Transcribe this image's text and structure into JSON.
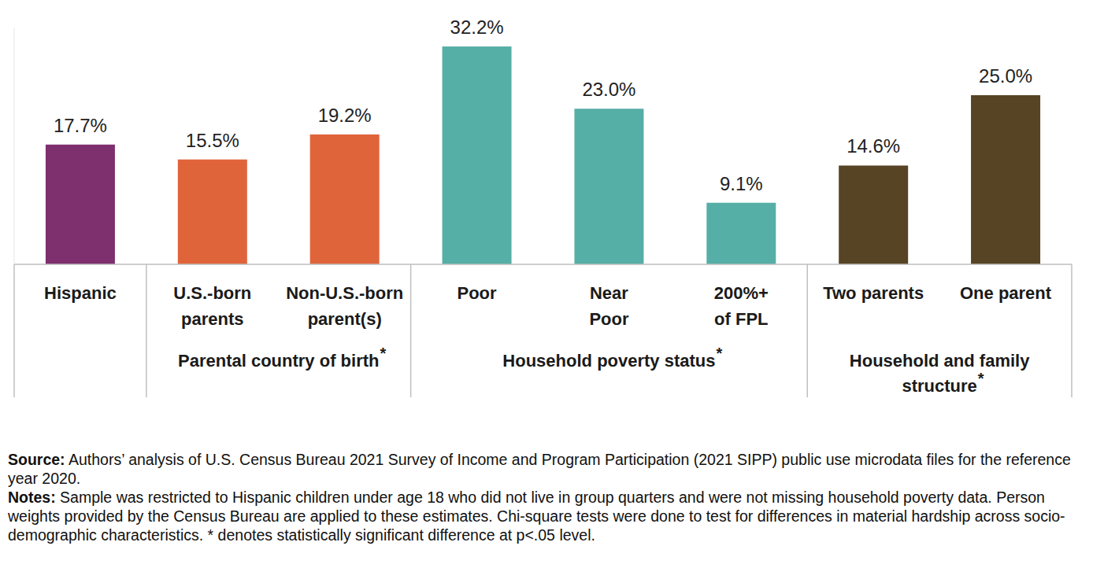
{
  "chart_data": {
    "type": "bar",
    "categories": [
      "Hispanic",
      "U.S.-born\nparents",
      "Non-U.S.-born\nparent(s)",
      "Poor",
      "Near\nPoor",
      "200%+\nof FPL",
      "Two parents",
      "One parent"
    ],
    "values": [
      17.7,
      15.5,
      19.2,
      32.2,
      23.0,
      9.1,
      14.6,
      25.0
    ],
    "value_labels": [
      "17.7%",
      "15.5%",
      "19.2%",
      "32.2%",
      "23.0%",
      "9.1%",
      "14.6%",
      "25.0%"
    ],
    "colors": [
      "#7e2f6e",
      "#e0643a",
      "#e0643a",
      "#56afa6",
      "#56afa6",
      "#56afa6",
      "#564424",
      "#564424"
    ],
    "groups": [
      {
        "label": null,
        "size": 1
      },
      {
        "label": "Parental country of birth",
        "note": "*",
        "size": 2
      },
      {
        "label": "Household poverty status",
        "note": "*",
        "size": 3
      },
      {
        "label": "Household and family\nstructure",
        "note": "*",
        "size": 2
      }
    ],
    "ylim": [
      0,
      35
    ],
    "tick_labels": false,
    "grid": false,
    "data_labels": true,
    "footnotes": [
      {
        "label": "Source:",
        "text": "Authors’ analysis of U.S. Census Bureau 2021 Survey of Income and Program Participation (2021 SIPP) public use microdata files for the reference year 2020."
      },
      {
        "label": "Notes:",
        "text": "Sample was restricted to Hispanic children under age 18 who did not live in group quarters and were not missing household poverty data. Person weights provided by the Census Bureau are applied to these estimates. Chi-square tests were done to test for differences in material hardship across socio-demographic characteristics. * denotes statistically significant difference at p<.05 level."
      }
    ]
  }
}
